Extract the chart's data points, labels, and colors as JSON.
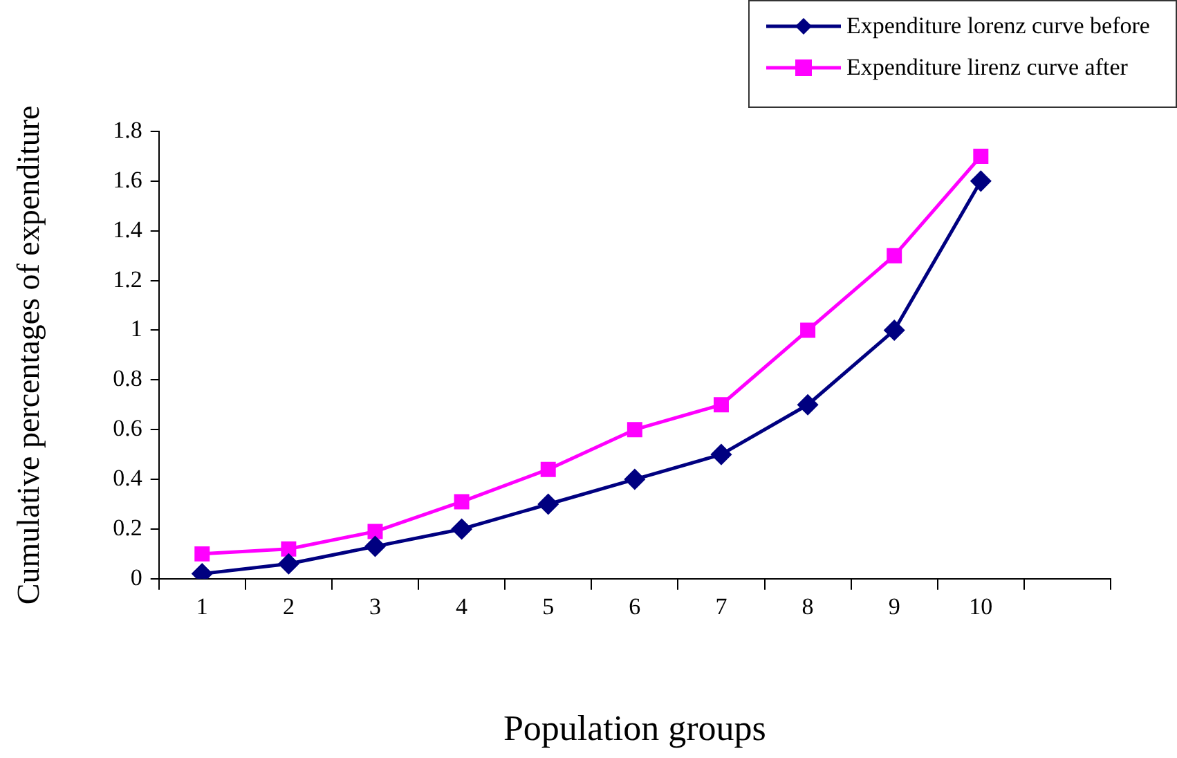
{
  "chart_data": {
    "type": "line",
    "xlabel": "Population groups",
    "ylabel": "Cumulative percentages of expenditure",
    "categories": [
      "1",
      "2",
      "3",
      "4",
      "5",
      "6",
      "7",
      "8",
      "9",
      "10",
      null
    ],
    "series": [
      {
        "name": "Expenditure lorenz curve before",
        "color": "#000080",
        "marker": "diamond",
        "values": [
          0.02,
          0.06,
          0.13,
          0.2,
          0.3,
          0.4,
          0.5,
          0.7,
          1.0,
          1.6,
          null
        ]
      },
      {
        "name": "Expenditure lirenz curve after",
        "color": "#ff00ff",
        "marker": "square",
        "values": [
          0.1,
          0.12,
          0.19,
          0.31,
          0.44,
          0.6,
          0.7,
          1.0,
          1.3,
          1.7,
          null
        ]
      }
    ],
    "ylim": [
      0,
      1.8
    ],
    "yticks": [
      0,
      0.2,
      0.4,
      0.6,
      0.8,
      1,
      1.2,
      1.4,
      1.6,
      1.8
    ],
    "grid": false,
    "legend": "top right",
    "line_style": "solid"
  }
}
